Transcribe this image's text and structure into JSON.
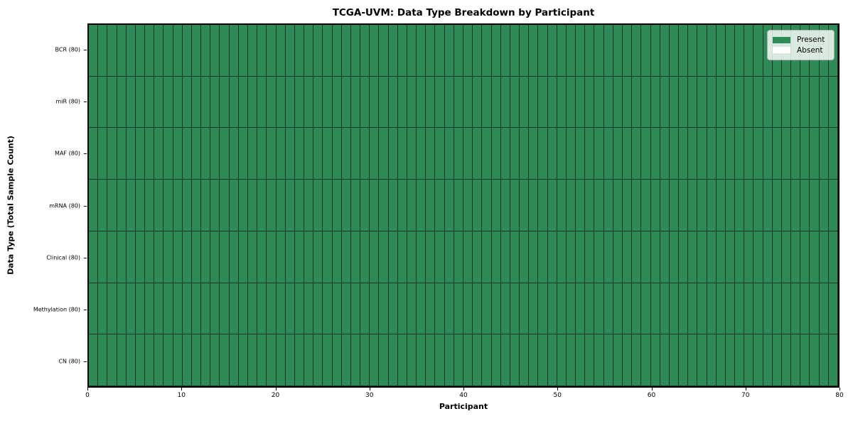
{
  "chart_data": {
    "type": "heatmap",
    "title": "TCGA-UVM: Data Type Breakdown by Participant",
    "xlabel": "Participant",
    "ylabel": "Data Type (Total Sample Count)",
    "xlim": [
      0,
      80
    ],
    "x_ticks": [
      0,
      10,
      20,
      30,
      40,
      50,
      60,
      70,
      80
    ],
    "n_participants": 80,
    "rows_top_to_bottom": [
      "BCR (80)",
      "miR (80)",
      "MAF (80)",
      "mRNA (80)",
      "Clinical (80)",
      "Methylation (80)",
      "CN (80)"
    ],
    "row_totals": [
      80,
      80,
      80,
      80,
      80,
      80,
      80
    ],
    "present_per_row": [
      80,
      80,
      80,
      80,
      80,
      80,
      80
    ],
    "absent_cells": [],
    "legend": {
      "position": "upper right",
      "entries": [
        {
          "label": "Present",
          "color": "#2e8b57"
        },
        {
          "label": "Absent",
          "color": "#ffffff"
        }
      ]
    },
    "colors": {
      "present": "#2e8b57",
      "absent": "#ffffff",
      "cell_border": "rgba(0,0,0,0.62)",
      "axes_edge": "#000000"
    },
    "grid": "per-cell dark borders, major x ticks every 10"
  }
}
